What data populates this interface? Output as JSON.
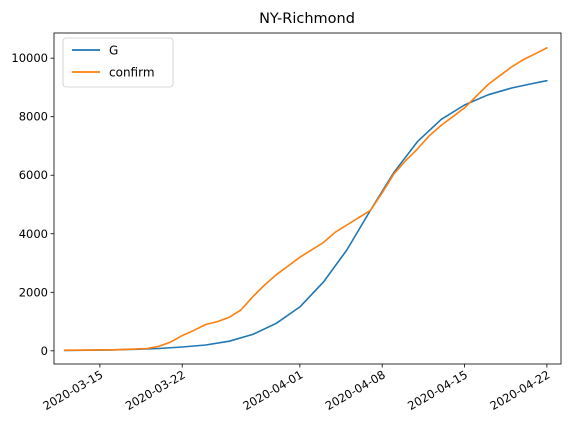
{
  "chart_data": {
    "type": "line",
    "title": "NY-Richmond",
    "xlabel": "",
    "ylabel": "",
    "xlim": [
      "2020-03-12",
      "2020-04-22"
    ],
    "ylim": [
      -450,
      10860
    ],
    "x_ticks": [
      "2020-03-15",
      "2020-03-22",
      "2020-04-01",
      "2020-04-08",
      "2020-04-15",
      "2020-04-22"
    ],
    "y_ticks": [
      0,
      2000,
      4000,
      6000,
      8000,
      10000
    ],
    "grid": false,
    "legend": "top-left",
    "series": [
      {
        "name": "G",
        "color": "#1f77b4",
        "points": [
          [
            "2020-03-12",
            15
          ],
          [
            "2020-03-14",
            22
          ],
          [
            "2020-03-16",
            32
          ],
          [
            "2020-03-18",
            52
          ],
          [
            "2020-03-20",
            80
          ],
          [
            "2020-03-22",
            130
          ],
          [
            "2020-03-24",
            200
          ],
          [
            "2020-03-26",
            330
          ],
          [
            "2020-03-28",
            560
          ],
          [
            "2020-03-30",
            940
          ],
          [
            "2020-04-01",
            1500
          ],
          [
            "2020-04-03",
            2350
          ],
          [
            "2020-04-05",
            3450
          ],
          [
            "2020-04-07",
            4800
          ],
          [
            "2020-04-09",
            6100
          ],
          [
            "2020-04-11",
            7150
          ],
          [
            "2020-04-13",
            7900
          ],
          [
            "2020-04-15",
            8400
          ],
          [
            "2020-04-17",
            8750
          ],
          [
            "2020-04-19",
            8980
          ],
          [
            "2020-04-21",
            9150
          ],
          [
            "2020-04-22",
            9230
          ]
        ]
      },
      {
        "name": "confirm",
        "color": "#ff7f0e",
        "points": [
          [
            "2020-03-12",
            20
          ],
          [
            "2020-03-14",
            25
          ],
          [
            "2020-03-16",
            35
          ],
          [
            "2020-03-18",
            60
          ],
          [
            "2020-03-19",
            80
          ],
          [
            "2020-03-20",
            150
          ],
          [
            "2020-03-21",
            300
          ],
          [
            "2020-03-22",
            520
          ],
          [
            "2020-03-23",
            700
          ],
          [
            "2020-03-24",
            900
          ],
          [
            "2020-03-25",
            1000
          ],
          [
            "2020-03-26",
            1150
          ],
          [
            "2020-03-27",
            1400
          ],
          [
            "2020-03-28",
            1850
          ],
          [
            "2020-03-29",
            2250
          ],
          [
            "2020-03-30",
            2600
          ],
          [
            "2020-03-31",
            2900
          ],
          [
            "2020-04-01",
            3200
          ],
          [
            "2020-04-02",
            3450
          ],
          [
            "2020-04-03",
            3700
          ],
          [
            "2020-04-04",
            4050
          ],
          [
            "2020-04-05",
            4300
          ],
          [
            "2020-04-06",
            4550
          ],
          [
            "2020-04-07",
            4800
          ],
          [
            "2020-04-08",
            5400
          ],
          [
            "2020-04-09",
            6050
          ],
          [
            "2020-04-10",
            6500
          ],
          [
            "2020-04-11",
            6900
          ],
          [
            "2020-04-12",
            7350
          ],
          [
            "2020-04-13",
            7700
          ],
          [
            "2020-04-14",
            8000
          ],
          [
            "2020-04-15",
            8300
          ],
          [
            "2020-04-16",
            8700
          ],
          [
            "2020-04-17",
            9100
          ],
          [
            "2020-04-18",
            9400
          ],
          [
            "2020-04-19",
            9700
          ],
          [
            "2020-04-20",
            9950
          ],
          [
            "2020-04-21",
            10150
          ],
          [
            "2020-04-22",
            10350
          ]
        ]
      }
    ]
  }
}
